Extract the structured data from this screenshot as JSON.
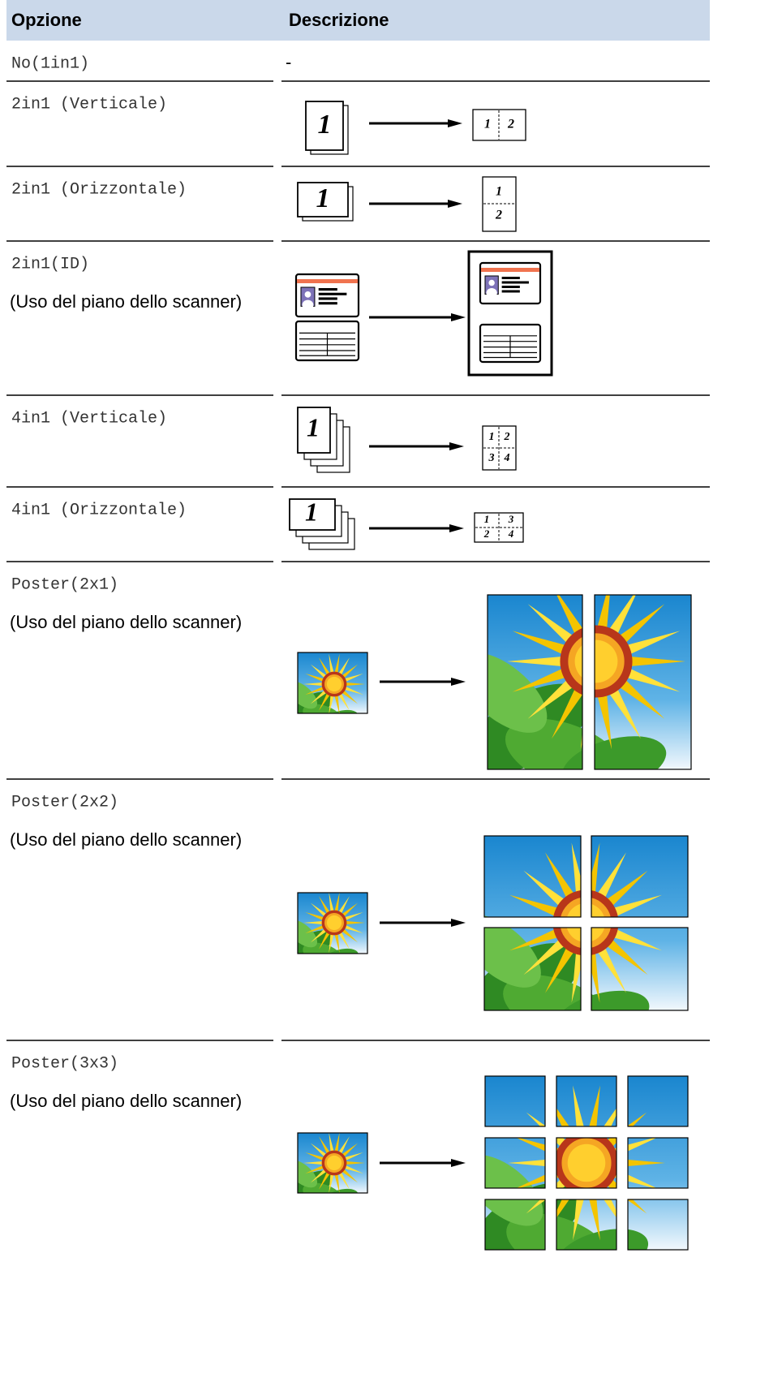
{
  "table": {
    "headers": [
      "Opzione",
      "Descrizione"
    ],
    "rows": [
      {
        "option": "No(1in1)",
        "description": "-"
      },
      {
        "option": "2in1 (Verticale)",
        "source": "1",
        "result": [
          "1",
          "2"
        ]
      },
      {
        "option": "2in1 (Orizzontale)",
        "source": "1",
        "result": [
          "1",
          "2"
        ]
      },
      {
        "option": "2in1(ID)",
        "note": "(Uso del piano dello scanner)"
      },
      {
        "option": "4in1 (Verticale)",
        "source": "1",
        "result": [
          "1",
          "2",
          "3",
          "4"
        ]
      },
      {
        "option": "4in1 (Orizzontale)",
        "source": "1",
        "result": [
          "1",
          "3",
          "2",
          "4"
        ]
      },
      {
        "option": "Poster(2x1)",
        "note": "(Uso del piano dello scanner)"
      },
      {
        "option": "Poster(2x2)",
        "note": "(Uso del piano dello scanner)"
      },
      {
        "option": "Poster(3x3)",
        "note": "(Uso del piano dello scanner)"
      }
    ]
  }
}
